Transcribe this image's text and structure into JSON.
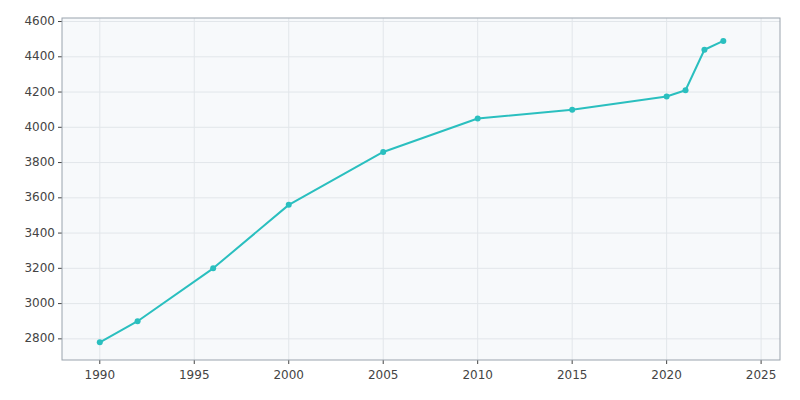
{
  "chart_data": {
    "type": "line",
    "x": [
      1990,
      1992,
      1996,
      2000,
      2005,
      2010,
      2015,
      2020,
      2021,
      2022,
      2023
    ],
    "values": [
      2780,
      2900,
      3200,
      3560,
      3860,
      4050,
      4100,
      4175,
      4210,
      4440,
      4490
    ],
    "color": "#2abfbf",
    "marker": "circle",
    "xlim": [
      1988,
      2026
    ],
    "ylim": [
      2680,
      4620
    ],
    "xticks": [
      1990,
      1995,
      2000,
      2005,
      2010,
      2015,
      2020,
      2025
    ],
    "yticks": [
      2800,
      3000,
      3200,
      3400,
      3600,
      3800,
      4000,
      4200,
      4400,
      4600
    ],
    "grid": true
  }
}
